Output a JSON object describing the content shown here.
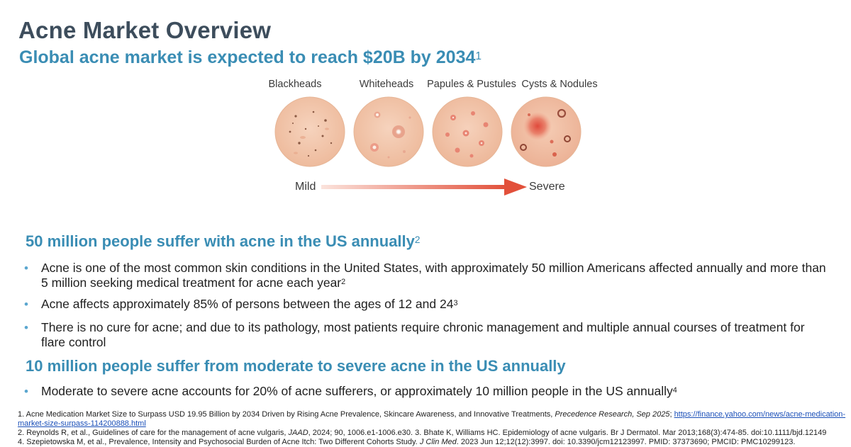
{
  "header": {
    "title": "Acne Market Overview",
    "subtitle": "Global acne market is expected to reach $20B by 2034",
    "subtitle_sup": "1"
  },
  "stages": [
    {
      "label": "Blackheads",
      "icon": "blackheads-skin-icon"
    },
    {
      "label": "Whiteheads",
      "icon": "whiteheads-skin-icon"
    },
    {
      "label": "Papules & Pustules",
      "icon": "papules-pustules-skin-icon"
    },
    {
      "label": "Cysts & Nodules",
      "icon": "cysts-nodules-skin-icon"
    }
  ],
  "severity": {
    "low": "Mild",
    "high": "Severe",
    "arrow_color_start": "#fbe3dc",
    "arrow_color_end": "#e2503a"
  },
  "section1": {
    "heading": "50 million people suffer with acne in the US annually",
    "heading_sup": "2",
    "bullets": [
      {
        "text": "Acne is one of the most common skin conditions in the United States, with approximately 50 million Americans affected annually and more than 5 million seeking medical treatment for acne each year",
        "sup": "2"
      },
      {
        "text": "Acne affects approximately 85% of persons between the ages of 12 and 24",
        "sup": "3"
      },
      {
        "text": "There is no cure for acne; and due to its pathology, most patients require chronic management and multiple annual courses of treatment for flare control",
        "sup": ""
      }
    ]
  },
  "section2": {
    "heading": "10 million people suffer from moderate to severe acne in the US annually",
    "bullets": [
      {
        "text": "Moderate to severe acne accounts for 20% of acne sufferers, or approximately 10 million people in the US annually",
        "sup": "4"
      }
    ]
  },
  "references": {
    "ref1_text": "1. Acne Medication Market Size to Surpass USD 19.95 Billion by 2034 Driven by Rising Acne Prevalence, Skincare Awareness, and Innovative Treatments,",
    "ref1_source": "Precedence Research, Sep 2025",
    "ref1_link": "https://finance.yahoo.com/news/acne-medication-market-size-surpass-114200888.html",
    "ref2_text": "2. Reynolds R, et al., Guidelines of care for the management of acne vulgaris,",
    "ref2_journal": "JAAD",
    "ref2_rest": ", 2024; 90, 1006.e1-1006.e30. 3. Bhate K, Williams HC. Epidemiology of acne vulgaris. Br J Dermatol. Mar 2013;168(3):474-85. doi:10.1111/bjd.12149",
    "ref4_text": "4. Szepietowska M, et al., Prevalence, Intensity and Psychosocial Burden of Acne Itch: Two Different Cohorts Study.",
    "ref4_journal": "J Clin Med",
    "ref4_rest": ". 2023 Jun 12;12(12):3997. doi: 10.3390/jcm12123997. PMID: 37373690; PMCID: PMC10299123."
  },
  "colors": {
    "title": "#3d4d5c",
    "accent": "#3a8db4",
    "bullet": "#5aa6cf",
    "skin": "#f2c4a8"
  }
}
